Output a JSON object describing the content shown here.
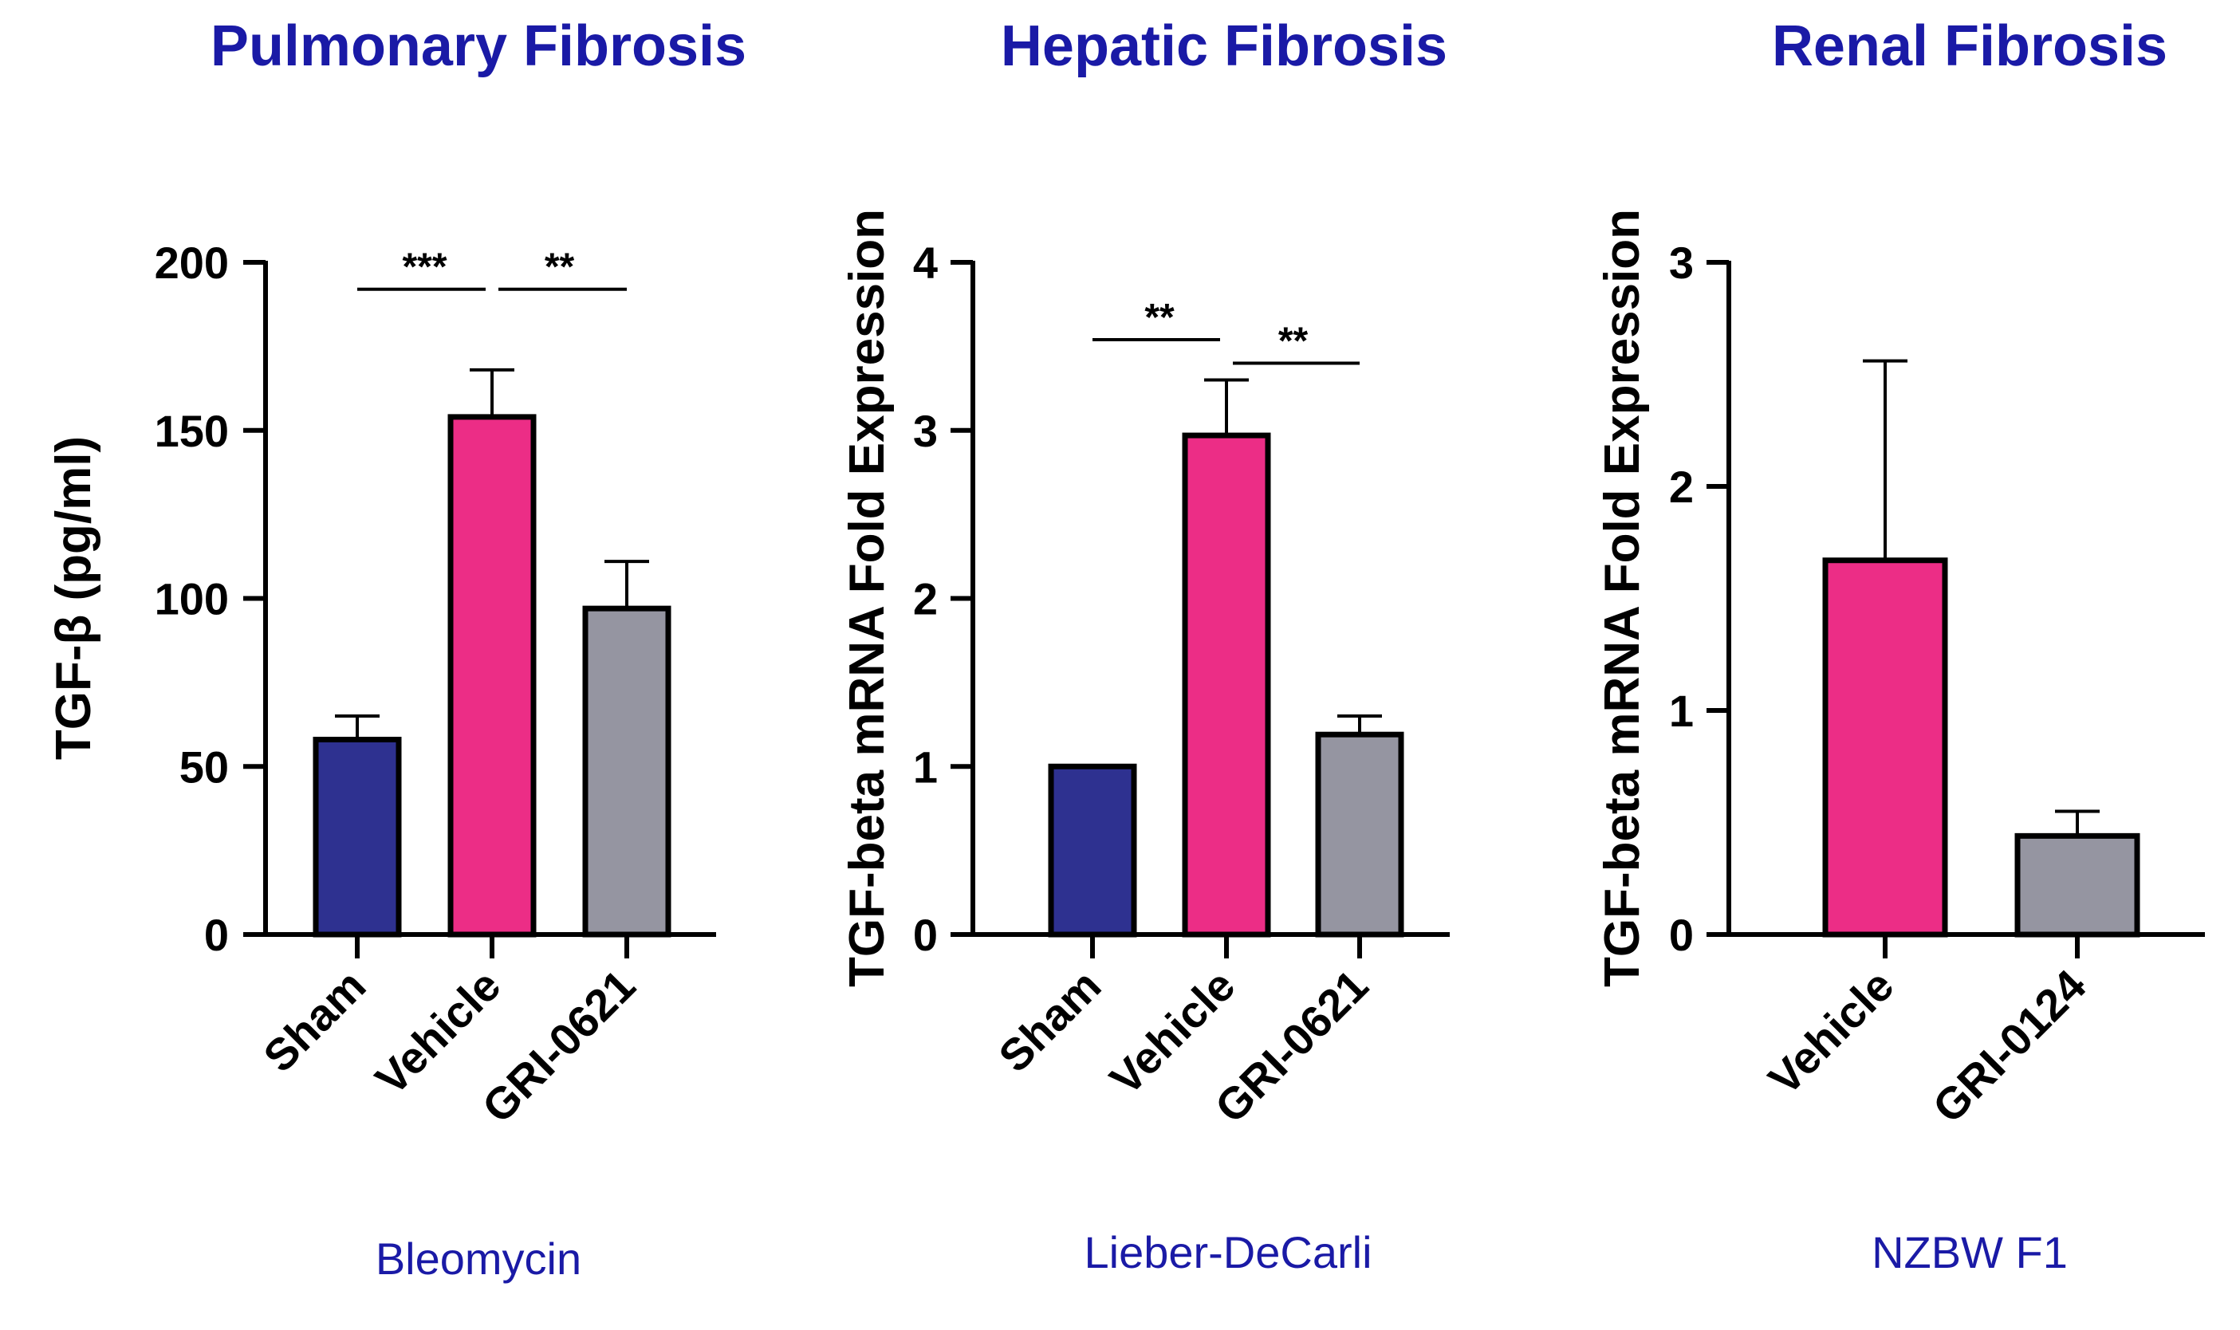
{
  "colors": {
    "title_text": "#1a1aa6",
    "axis": "#000000",
    "sham": "#2e3190",
    "vehicle": "#ec2d86",
    "treatment": "#9595a1"
  },
  "chart_data": [
    {
      "type": "bar",
      "title": "Pulmonary Fibrosis",
      "subtitle": "Bleomycin",
      "ylabel": "TGF-β (pg/ml)",
      "xlabel": "",
      "ylim": [
        0,
        200
      ],
      "yticks": [
        0,
        50,
        100,
        150,
        200
      ],
      "ytick_labels": [
        "0",
        "50",
        "100",
        "150",
        "200"
      ],
      "categories": [
        "Sham",
        "Vehicle",
        "GRI-0621"
      ],
      "values": [
        58,
        154,
        97
      ],
      "errors": [
        7,
        14,
        14
      ],
      "bar_colors": [
        "#2e3190",
        "#ec2d86",
        "#9595a1"
      ],
      "significance": [
        {
          "from": 0,
          "to": 1,
          "label": "***",
          "y": 192
        },
        {
          "from": 1,
          "to": 2,
          "label": "**",
          "y": 192
        }
      ]
    },
    {
      "type": "bar",
      "title": "Hepatic Fibrosis",
      "subtitle": "Lieber-DeCarli",
      "ylabel": "TGF-beta mRNA Fold Expression",
      "xlabel": "",
      "ylim": [
        0,
        4
      ],
      "yticks": [
        0,
        1,
        2,
        3,
        4
      ],
      "ytick_labels": [
        "0",
        "1",
        "2",
        "3",
        "4"
      ],
      "categories": [
        "Sham",
        "Vehicle",
        "GRI-0621"
      ],
      "values": [
        1.0,
        2.97,
        1.19
      ],
      "errors": [
        0,
        0.33,
        0.11
      ],
      "bar_colors": [
        "#2e3190",
        "#ec2d86",
        "#9595a1"
      ],
      "significance": [
        {
          "from": 0,
          "to": 1,
          "label": "**",
          "y": 3.54
        },
        {
          "from": 1,
          "to": 2,
          "label": "**",
          "y": 3.4
        }
      ]
    },
    {
      "type": "bar",
      "title": "Renal Fibrosis",
      "subtitle": "NZBW F1",
      "ylabel": "TGF-beta mRNA Fold Expression",
      "xlabel": "",
      "ylim": [
        0,
        3
      ],
      "yticks": [
        0,
        1,
        2,
        3
      ],
      "ytick_labels": [
        "0",
        "1",
        "2",
        "3"
      ],
      "categories": [
        "Vehicle",
        "GRI-0124"
      ],
      "values": [
        1.67,
        0.44
      ],
      "errors": [
        0.89,
        0.11
      ],
      "bar_colors": [
        "#ec2d86",
        "#9595a1"
      ],
      "significance": []
    }
  ]
}
